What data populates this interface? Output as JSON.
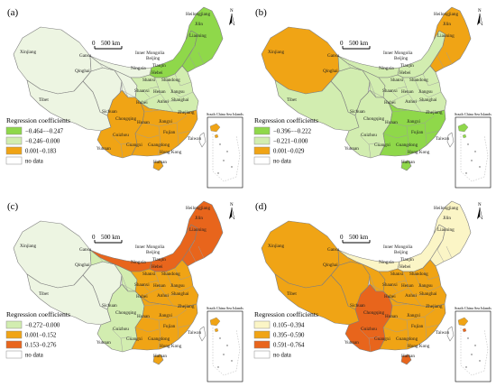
{
  "figure": {
    "scale_bar": {
      "zero": "0",
      "label": "500 km"
    },
    "north_label": "N",
    "inset_title": "South China Sea Islands",
    "legend_title": "Regression coefficients",
    "no_data_label": "no data",
    "province_names": [
      "Heilongjiang",
      "Jilin",
      "Liaoning",
      "Xinjiang",
      "Gansu",
      "Inner Mongolia",
      "Beijing",
      "Tianjin",
      "Hebei",
      "Ningxia",
      "Shanxi",
      "Shandong",
      "Qinghai",
      "Shaanxi",
      "Henan",
      "Jiangsu",
      "Tibet",
      "Shanghai",
      "Anhui",
      "Hubei",
      "Sichuan",
      "Chongqing",
      "Zhejiang",
      "Hunan",
      "Jiangxi",
      "Fujian",
      "Guizhou",
      "Yunnan",
      "Guangxi",
      "Guangdong",
      "Taiwan",
      "Hong Kong",
      "Hainan"
    ]
  },
  "panels": [
    {
      "label": "(a)",
      "legend": [
        {
          "label": "−0.464−−0.247",
          "color": "#8fd84a"
        },
        {
          "label": "−0.246−0.000",
          "color": "#d2edb0"
        },
        {
          "label": "0.001−0.183",
          "color": "#f0a415"
        },
        {
          "label": "no data",
          "color": "#ffffff"
        }
      ],
      "region_colors": {
        "xinjiang": "#edf5e2",
        "tibet": "#edf5e2",
        "qinghai": "#edf5e2",
        "gansu": "#edf5e2",
        "innermongolia_w": "#edf5e2",
        "innermongolia_e": "#8fd84a",
        "northeast": "#8fd84a",
        "north": "#d2edb0",
        "southwest": "#f0a415",
        "southeast": "#f0a415",
        "hainan": "#f0a415",
        "taiwan": "#ffffff"
      }
    },
    {
      "label": "(b)",
      "legend": [
        {
          "label": "−0.396−−0.222",
          "color": "#8fd84a"
        },
        {
          "label": "−0.221−0.000",
          "color": "#d2edb0"
        },
        {
          "label": "0.001−0.029",
          "color": "#f0a415"
        },
        {
          "label": "no data",
          "color": "#ffffff"
        }
      ],
      "region_colors": {
        "xinjiang": "#f0a415",
        "tibet": "#d2edb0",
        "qinghai": "#d2edb0",
        "gansu": "#d2edb0",
        "innermongolia_w": "#d2edb0",
        "innermongolia_e": "#d2edb0",
        "northeast": "#f0a415",
        "north": "#d2edb0",
        "southwest": "#d2edb0",
        "southeast": "#8fd84a",
        "hainan": "#8fd84a",
        "taiwan": "#ffffff"
      }
    },
    {
      "label": "(c)",
      "legend": [
        {
          "label": "−0.272−0.000",
          "color": "#d2edb0"
        },
        {
          "label": "0.001−0.152",
          "color": "#f0a415"
        },
        {
          "label": "0.153−0.276",
          "color": "#e8651c"
        },
        {
          "label": "no data",
          "color": "#ffffff"
        }
      ],
      "region_colors": {
        "xinjiang": "#edf5e2",
        "tibet": "#edf5e2",
        "qinghai": "#edf5e2",
        "gansu": "#d2edb0",
        "innermongolia_w": "#e8651c",
        "innermongolia_e": "#e8651c",
        "northeast": "#e8651c",
        "north": "#f0a415",
        "southwest": "#d2edb0",
        "southeast": "#f0a415",
        "hainan": "#f0a415",
        "taiwan": "#ffffff"
      }
    },
    {
      "label": "(d)",
      "legend": [
        {
          "label": "0.105−0.394",
          "color": "#fbf5c6"
        },
        {
          "label": "0.395−0.590",
          "color": "#f0a415"
        },
        {
          "label": "0.591−0.764",
          "color": "#e8651c"
        },
        {
          "label": "no data",
          "color": "#ffffff"
        }
      ],
      "region_colors": {
        "xinjiang": "#f0a415",
        "tibet": "#f0a415",
        "qinghai": "#f0a415",
        "gansu": "#f0a415",
        "innermongolia_w": "#fbf5c6",
        "innermongolia_e": "#fbf5c6",
        "northeast": "#fbf5c6",
        "north": "#f0a415",
        "southwest": "#e8651c",
        "southeast": "#f0a415",
        "hainan": "#e8651c",
        "taiwan": "#ffffff"
      }
    }
  ]
}
